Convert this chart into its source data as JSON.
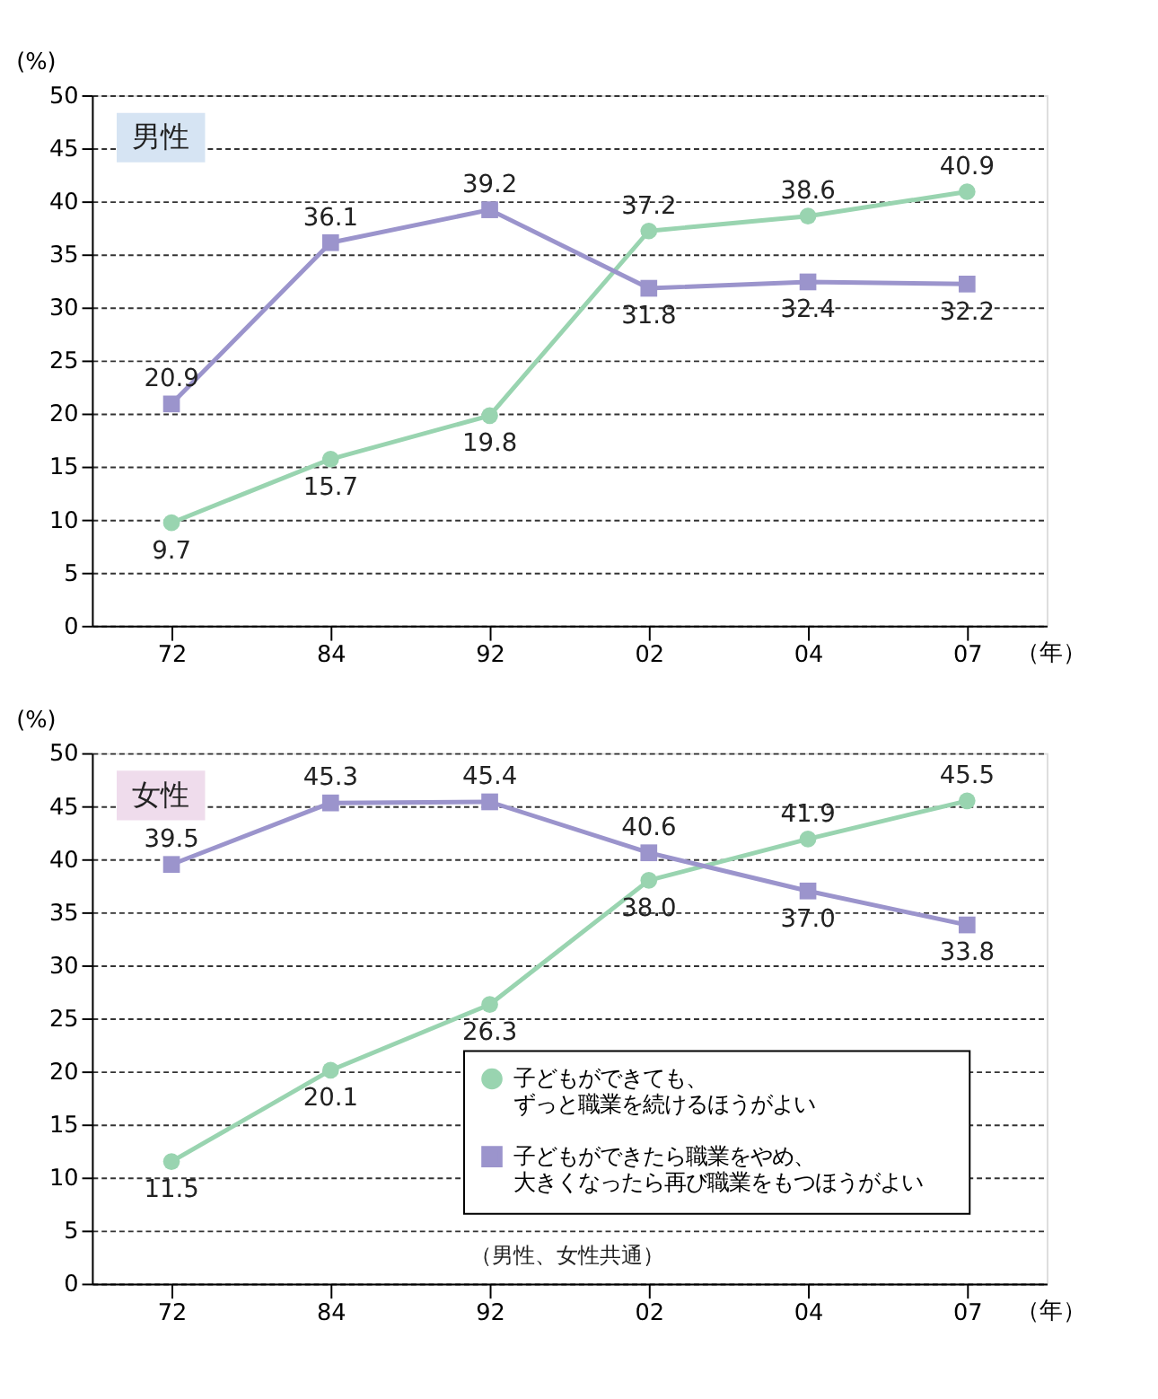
{
  "chart_data": [
    {
      "type": "line",
      "title": "男性",
      "xlabel": "（年）",
      "ylabel": "(%)",
      "categories": [
        "72",
        "84",
        "92",
        "02",
        "04",
        "07"
      ],
      "series": [
        {
          "color": "#99d4b0",
          "marker": "circle",
          "values": [
            9.7,
            15.7,
            19.8,
            37.2,
            38.6,
            40.9
          ]
        },
        {
          "color": "#9b94cc",
          "marker": "square",
          "values": [
            20.9,
            36.1,
            39.2,
            31.8,
            32.4,
            32.2
          ]
        }
      ],
      "ylim": [
        0,
        50
      ],
      "yticks": [
        0,
        5,
        10,
        15,
        20,
        25,
        30,
        35,
        40,
        45,
        50
      ],
      "grid": "y",
      "data_labels": true,
      "legend": false
    },
    {
      "type": "line",
      "title": "女性",
      "xlabel": "（年）",
      "ylabel": "(%)",
      "categories": [
        "72",
        "84",
        "92",
        "02",
        "04",
        "07"
      ],
      "series": [
        {
          "name": "子どもができても、ずっと職業を続けるほうがよい",
          "color": "#99d4b0",
          "marker": "circle",
          "values": [
            11.5,
            20.1,
            26.3,
            38.0,
            41.9,
            45.5
          ],
          "value_labels": [
            "11.5",
            "20.1",
            "26.3",
            "38.0",
            "41.9",
            "45.5"
          ]
        },
        {
          "name": "子どもができたら職業をやめ、大きくなったら再び職業をもつほうがよい",
          "color": "#9b94cc",
          "marker": "square",
          "values": [
            39.5,
            45.3,
            45.4,
            40.6,
            37.0,
            33.8
          ],
          "value_labels": [
            "39.5",
            "45.3",
            "45.4",
            "40.6",
            "37.0",
            "33.8"
          ]
        }
      ],
      "ylim": [
        0,
        50
      ],
      "yticks": [
        0,
        5,
        10,
        15,
        20,
        25,
        30,
        35,
        40,
        45,
        50
      ],
      "grid": "y",
      "legend": "bottom right",
      "annotations": [
        "（男性、女性共通）"
      ]
    }
  ]
}
